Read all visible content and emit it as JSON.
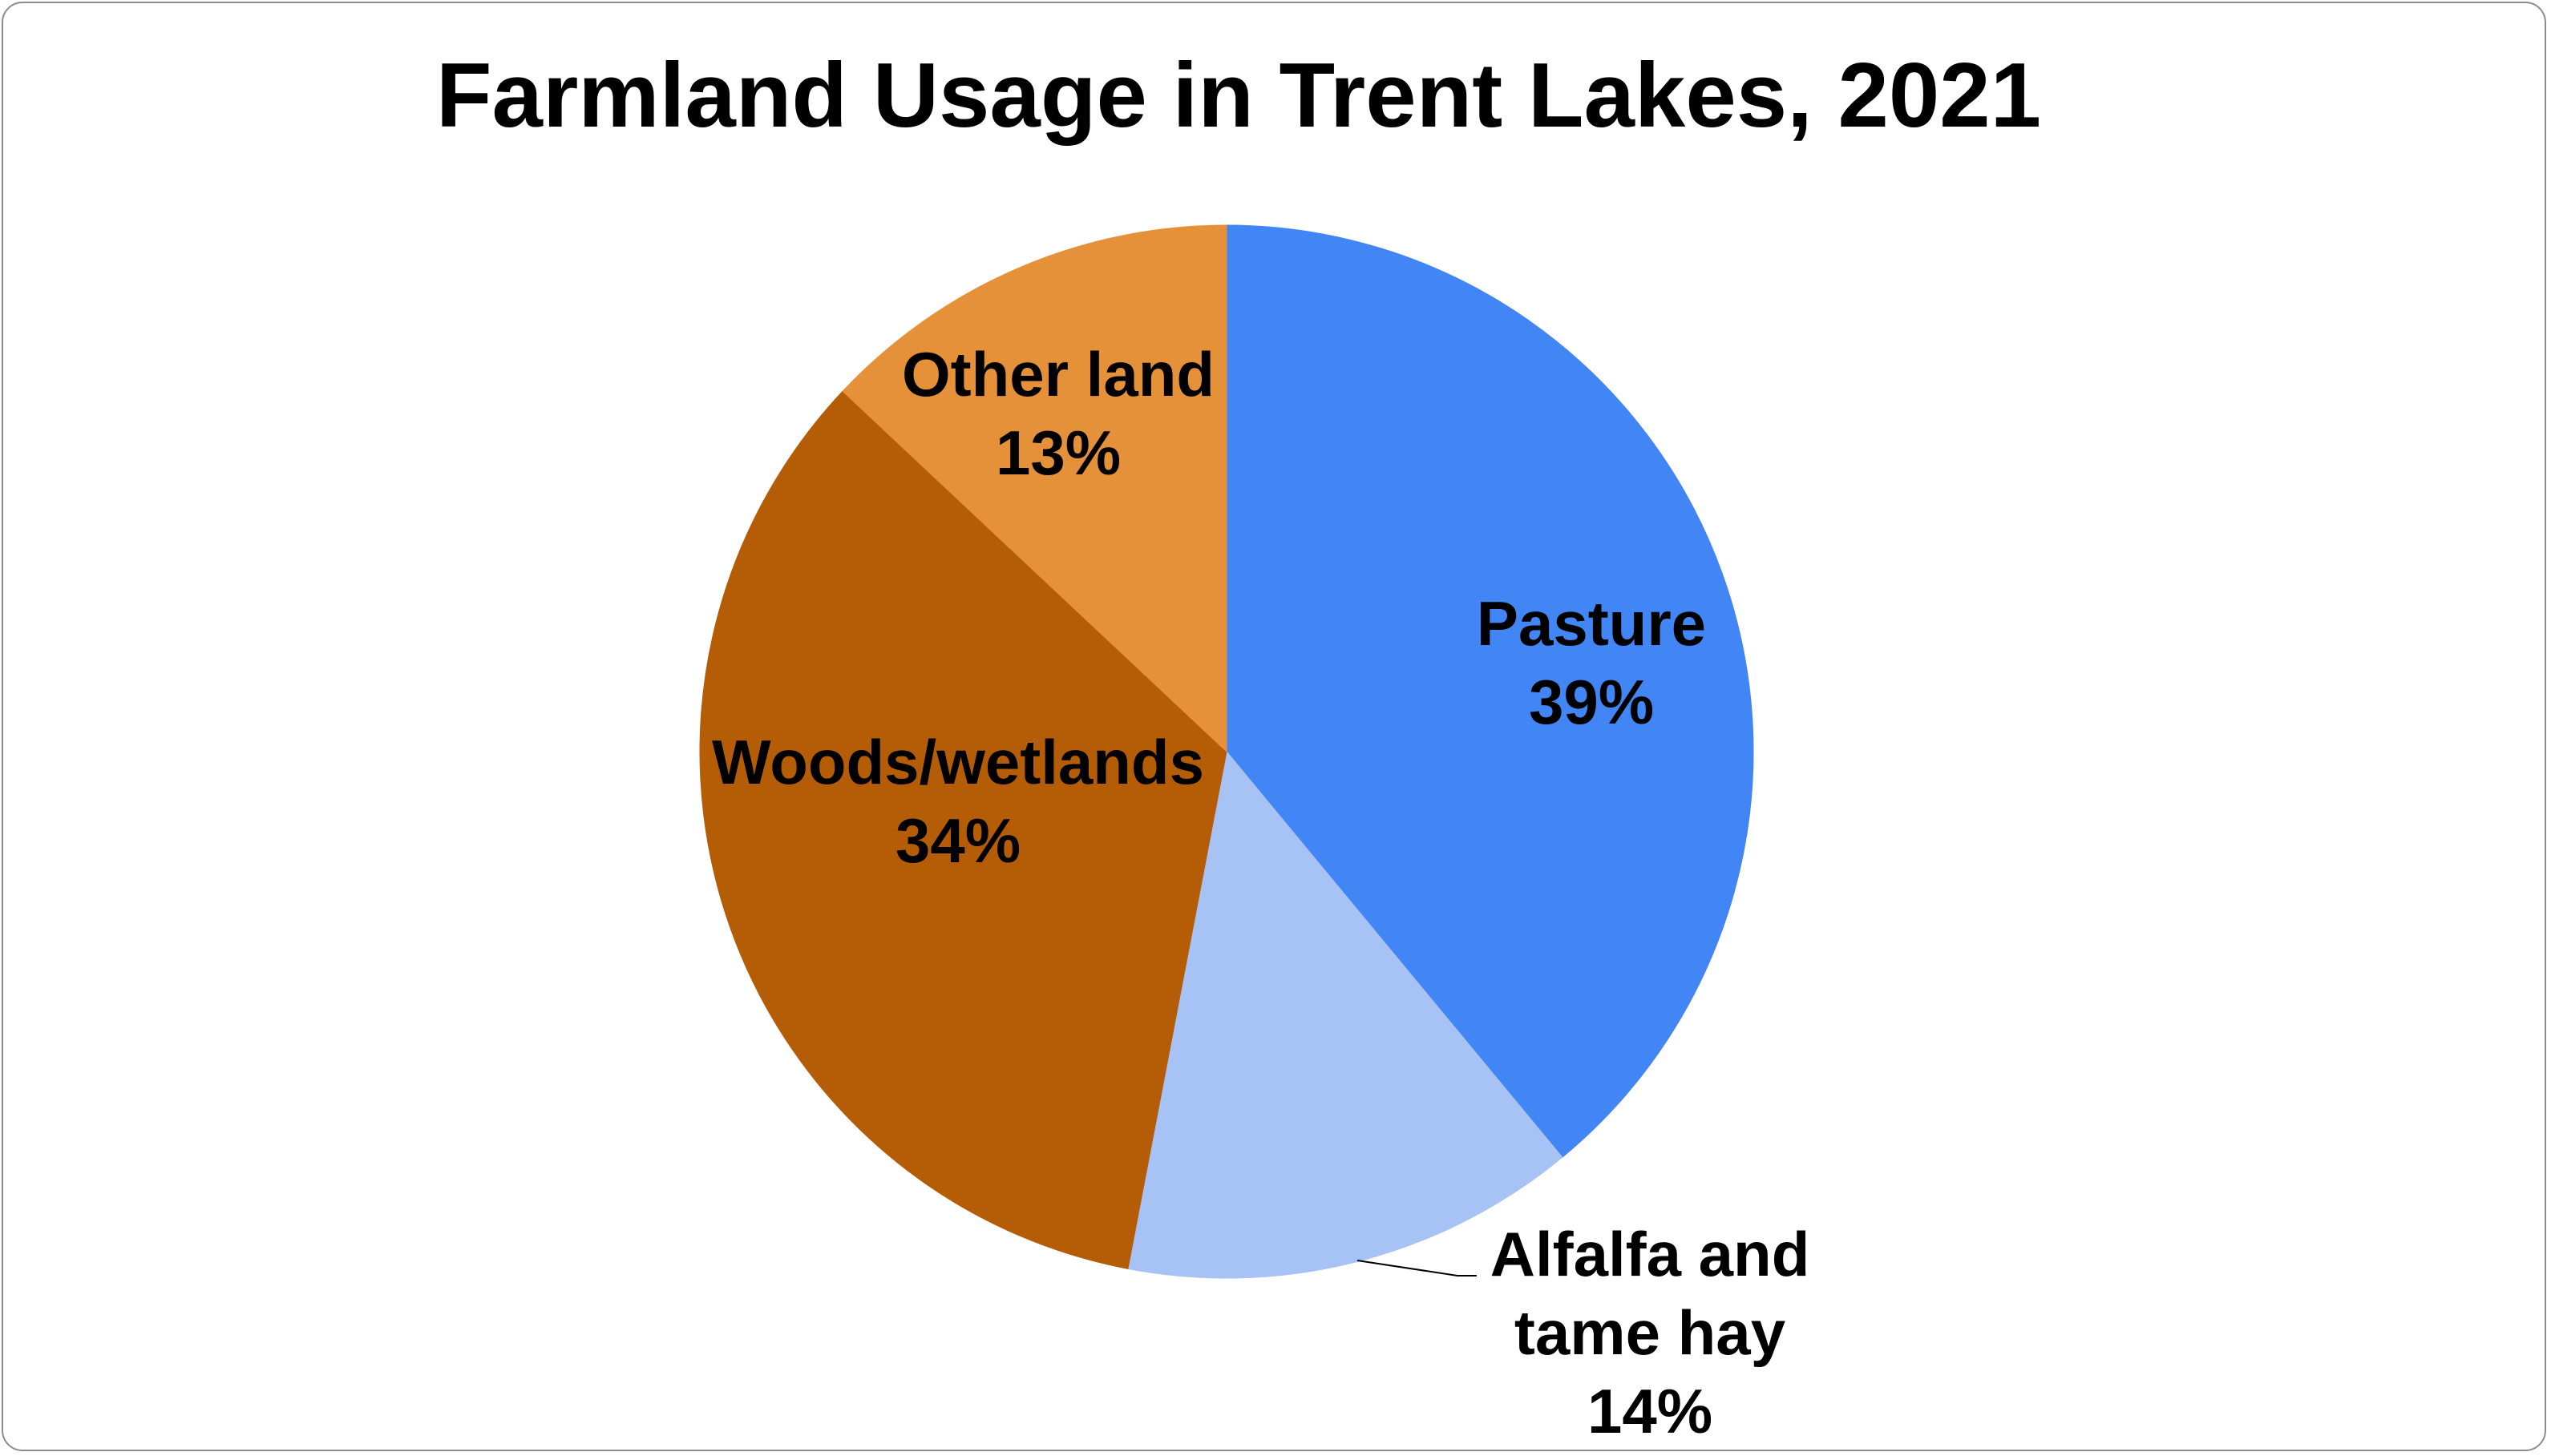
{
  "chart_data": {
    "type": "pie",
    "title": "Farmland Usage in Trent Lakes, 2021",
    "slices": [
      {
        "label": "Pasture",
        "value": 39,
        "value_label": "39%",
        "color": "#4285f4"
      },
      {
        "label": "Alfalfa and tame hay",
        "value": 14,
        "value_label": "14%",
        "color": "#a7c2f4"
      },
      {
        "label": "Woods/wetlands",
        "value": 34,
        "value_label": "34%",
        "color": "#b45d06"
      },
      {
        "label": "Other land",
        "value": 13,
        "value_label": "13%",
        "color": "#e5913a"
      }
    ],
    "label_lines": {
      "Alfalfa and tame hay": [
        "Alfalfa and",
        "tame hay",
        "14%"
      ]
    },
    "start_angle": "12 o'clock",
    "direction": "clockwise",
    "legend": "none",
    "data_labels": "category name and percentage"
  }
}
